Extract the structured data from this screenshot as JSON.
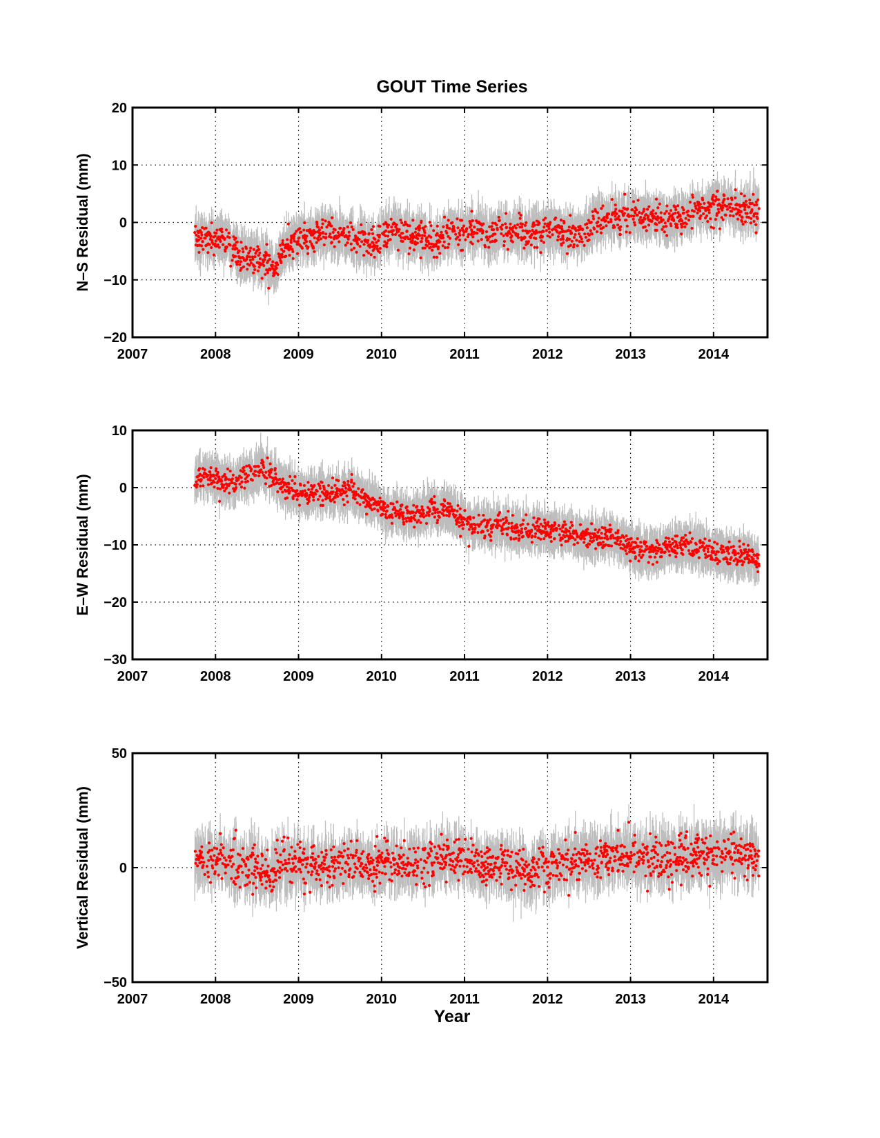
{
  "figure": {
    "title": "GOUT Time Series",
    "xlabel": "Year",
    "marker_color": "#ff0000",
    "errorbar_color": "#bdbdbd"
  },
  "chart_data": [
    {
      "type": "scatter",
      "ylabel": "N–S Residual (mm)",
      "xlim": [
        2007,
        2014.65
      ],
      "ylim": [
        -20,
        20
      ],
      "xticks": [
        "2007",
        "2008",
        "2009",
        "2010",
        "2011",
        "2012",
        "2013",
        "2014"
      ],
      "yticks": [
        "−20",
        "−10",
        "0",
        "10",
        "20"
      ],
      "ytick_values": [
        -20,
        -10,
        0,
        10,
        20
      ],
      "grid": true,
      "error_bars": true,
      "series": [
        {
          "x": [
            2007.75,
            2007.85,
            2008.0,
            2008.15,
            2008.3,
            2008.45,
            2008.6,
            2008.7,
            2008.85,
            2009.0,
            2009.15,
            2009.3,
            2009.5,
            2009.7,
            2009.85,
            2009.95,
            2010.05,
            2010.2,
            2010.35,
            2010.5,
            2010.65,
            2010.8,
            2010.95,
            2011.1,
            2011.3,
            2011.5,
            2011.7,
            2011.9,
            2012.1,
            2012.3,
            2012.45,
            2012.55,
            2012.7,
            2012.85,
            2013.0,
            2013.2,
            2013.4,
            2013.55,
            2013.7,
            2013.85,
            2014.0,
            2014.15,
            2014.3,
            2014.45,
            2014.55
          ],
          "y": [
            -2.5,
            -3,
            -3,
            -3,
            -6,
            -6.5,
            -6.5,
            -8,
            -4,
            -3,
            -2.5,
            -2,
            -2,
            -3,
            -4,
            -3.5,
            -1.5,
            -2,
            -2,
            -3,
            -3.5,
            -2,
            -1.5,
            -1.5,
            -2,
            -1.5,
            -2,
            -1.5,
            -1.5,
            -2,
            -2,
            0,
            0.5,
            1,
            1.5,
            1,
            0.5,
            0.5,
            1.5,
            2,
            3,
            3,
            2.5,
            2.5,
            2.5
          ],
          "err": 2.5,
          "noise": 1.3
        }
      ]
    },
    {
      "type": "scatter",
      "ylabel": "E–W Residual (mm)",
      "xlim": [
        2007,
        2014.65
      ],
      "ylim": [
        -30,
        10
      ],
      "xticks": [
        "2007",
        "2008",
        "2009",
        "2010",
        "2011",
        "2012",
        "2013",
        "2014"
      ],
      "yticks": [
        "−30",
        "−20",
        "−10",
        "0",
        "10"
      ],
      "ytick_values": [
        -30,
        -20,
        -10,
        0,
        10
      ],
      "grid": true,
      "error_bars": true,
      "series": [
        {
          "x": [
            2007.75,
            2007.9,
            2008.0,
            2008.15,
            2008.3,
            2008.45,
            2008.55,
            2008.7,
            2008.85,
            2009.0,
            2009.2,
            2009.4,
            2009.6,
            2009.8,
            2010.0,
            2010.2,
            2010.35,
            2010.5,
            2010.6,
            2010.7,
            2010.8,
            2010.95,
            2011.1,
            2011.3,
            2011.5,
            2011.7,
            2011.9,
            2012.1,
            2012.3,
            2012.5,
            2012.65,
            2012.8,
            2012.95,
            2013.1,
            2013.3,
            2013.5,
            2013.65,
            2013.85,
            2014.0,
            2014.2,
            2014.4,
            2014.55
          ],
          "y": [
            1.5,
            2.5,
            1.5,
            1,
            1.5,
            2.5,
            4,
            2,
            0,
            -1,
            -1,
            -1,
            -0.5,
            -2,
            -3.5,
            -4.5,
            -5,
            -4.5,
            -3.5,
            -4.5,
            -3.5,
            -5.5,
            -6.5,
            -7,
            -7,
            -7.5,
            -7.5,
            -8,
            -8,
            -8.5,
            -8.5,
            -8.5,
            -10,
            -11,
            -11,
            -10.5,
            -10,
            -10.5,
            -11,
            -12,
            -12,
            -12.5
          ],
          "err": 2.5,
          "noise": 1.0
        }
      ]
    },
    {
      "type": "scatter",
      "ylabel": "Vertical Residual (mm)",
      "xlim": [
        2007,
        2014.65
      ],
      "ylim": [
        -50,
        50
      ],
      "xticks": [
        "2007",
        "2008",
        "2009",
        "2010",
        "2011",
        "2012",
        "2013",
        "2014"
      ],
      "yticks": [
        "−50",
        "0",
        "50"
      ],
      "ytick_values": [
        -50,
        0,
        50
      ],
      "grid": true,
      "error_bars": true,
      "series": [
        {
          "x": [
            2007.75,
            2008.0,
            2008.3,
            2008.6,
            2009.0,
            2009.3,
            2009.6,
            2010.0,
            2010.3,
            2010.6,
            2010.9,
            2011.2,
            2011.5,
            2011.8,
            2012.1,
            2012.4,
            2012.7,
            2013.0,
            2013.3,
            2013.6,
            2013.9,
            2014.2,
            2014.55
          ],
          "y": [
            3,
            3,
            1,
            -2,
            2,
            0,
            2,
            2,
            1,
            3,
            4,
            1,
            1,
            -2,
            2,
            3,
            4,
            5,
            4,
            4,
            6,
            6,
            6
          ],
          "err": 7,
          "noise": 4.5
        }
      ]
    }
  ]
}
